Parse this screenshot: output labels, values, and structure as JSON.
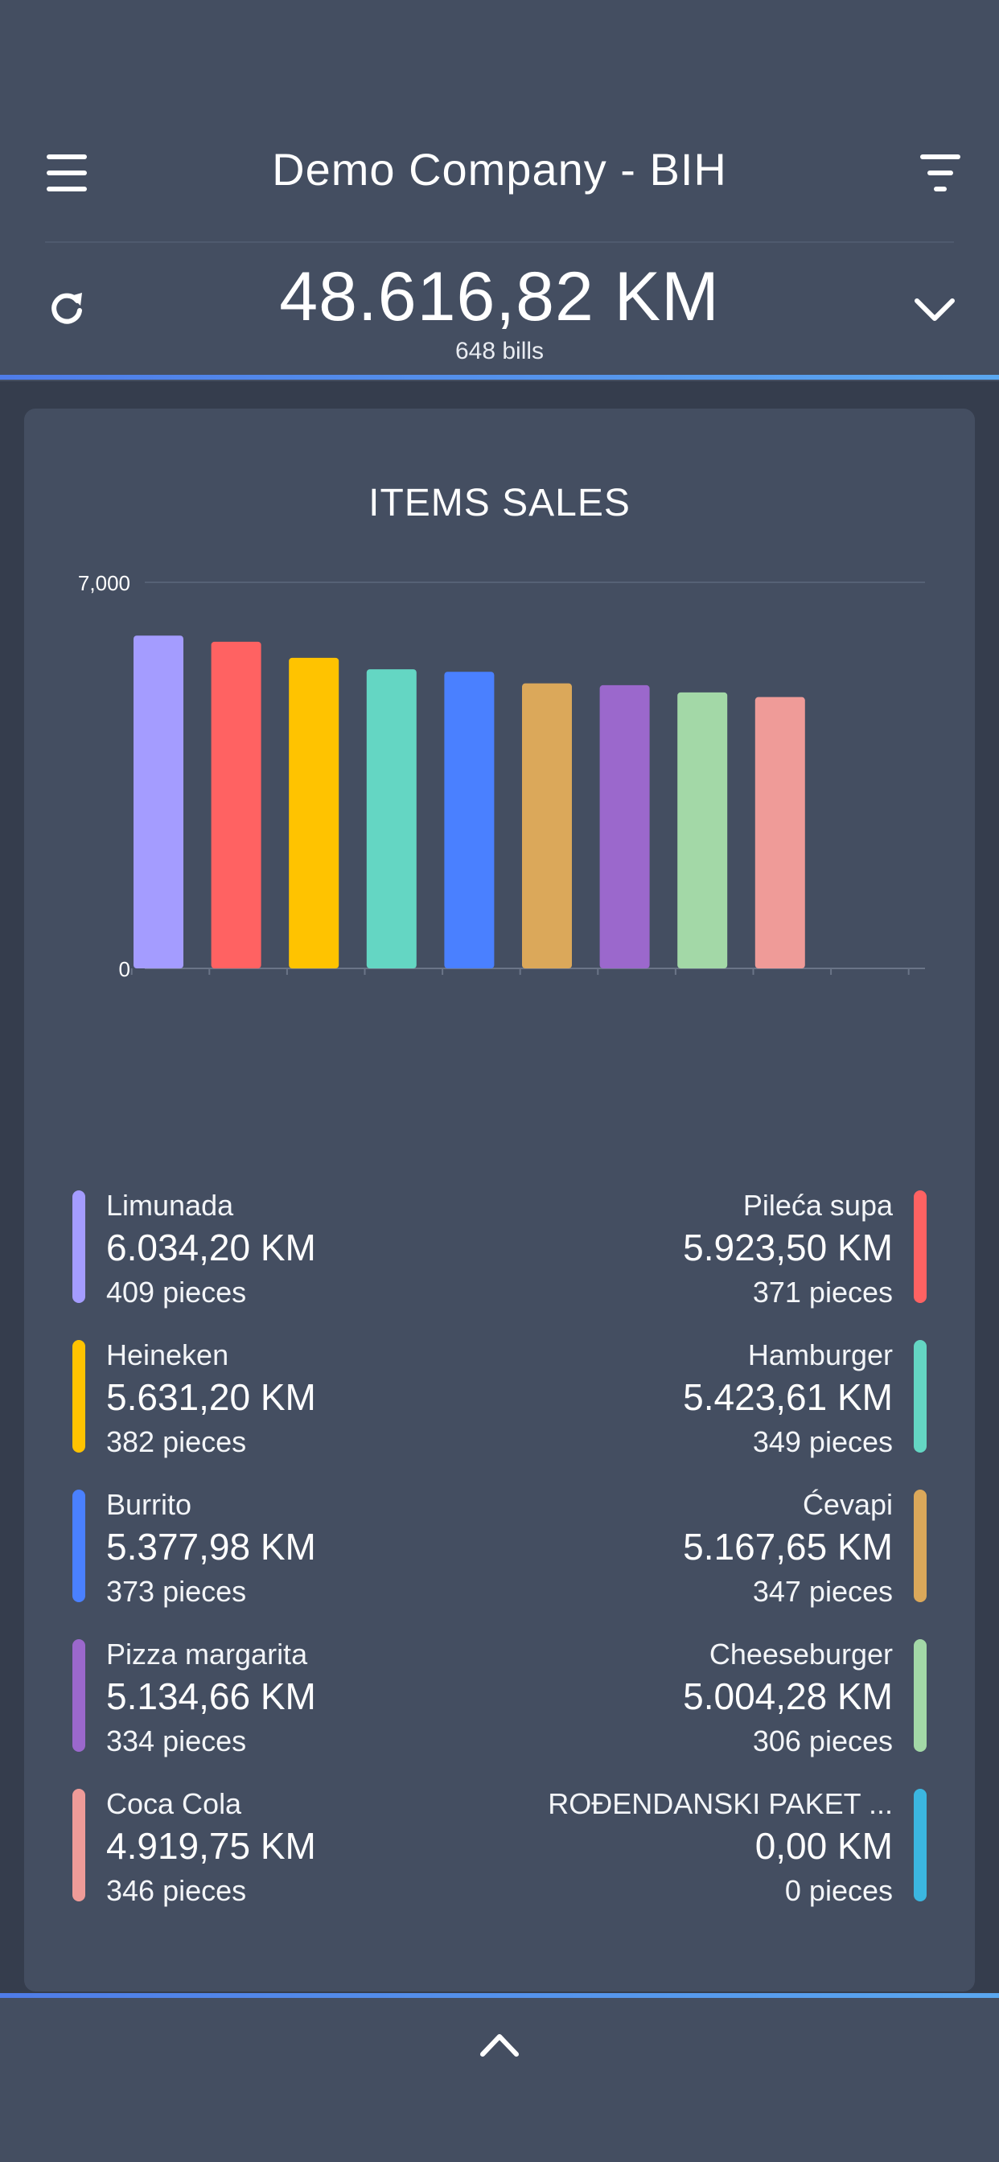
{
  "header": {
    "company_title": "Demo Company - BIH",
    "total_amount": "48.616,82 KM",
    "bills_count": "648 bills"
  },
  "icons": {
    "menu": "hamburger-menu-icon",
    "filter": "filter-icon",
    "refresh": "refresh-icon",
    "expand": "chevron-down-icon",
    "collapse": "chevron-up-icon"
  },
  "card": {
    "title": "ITEMS SALES"
  },
  "colors": {
    "accent": "#4f7ce8",
    "background": "#444e61",
    "content_background": "#353d4d"
  },
  "chart_data": {
    "type": "bar",
    "title": "",
    "ylim": [
      0,
      7000
    ],
    "y_tick_labels": [
      "0",
      "7,000"
    ],
    "grid": true,
    "categories": [
      "Limunada",
      "Pileća supa",
      "Heineken",
      "Hamburger",
      "Burrito",
      "Ćevapi",
      "Pizza margarita",
      "Cheeseburger",
      "Coca Cola",
      "ROĐENDANSKI PAKET ..."
    ],
    "values": [
      6034.2,
      5923.5,
      5631.2,
      5423.61,
      5377.98,
      5167.65,
      5134.66,
      5004.28,
      4919.75,
      0.0
    ],
    "colors": [
      "#a49cff",
      "#ff6262",
      "#ffc300",
      "#64d6c3",
      "#4a80ff",
      "#dba85a",
      "#9b68cc",
      "#a3d8a7",
      "#ef9b98",
      "#3bb6e0"
    ]
  },
  "legend": [
    {
      "name": "Limunada",
      "amount": "6.034,20 KM",
      "pieces": "409 pieces",
      "color": "#a49cff"
    },
    {
      "name": "Pileća supa",
      "amount": "5.923,50 KM",
      "pieces": "371 pieces",
      "color": "#ff6262"
    },
    {
      "name": "Heineken",
      "amount": "5.631,20 KM",
      "pieces": "382 pieces",
      "color": "#ffc300"
    },
    {
      "name": "Hamburger",
      "amount": "5.423,61 KM",
      "pieces": "349 pieces",
      "color": "#64d6c3"
    },
    {
      "name": "Burrito",
      "amount": "5.377,98 KM",
      "pieces": "373 pieces",
      "color": "#4a80ff"
    },
    {
      "name": "Ćevapi",
      "amount": "5.167,65 KM",
      "pieces": "347 pieces",
      "color": "#dba85a"
    },
    {
      "name": "Pizza margarita",
      "amount": "5.134,66 KM",
      "pieces": "334 pieces",
      "color": "#9b68cc"
    },
    {
      "name": "Cheeseburger",
      "amount": "5.004,28 KM",
      "pieces": "306 pieces",
      "color": "#a3d8a7"
    },
    {
      "name": "Coca Cola",
      "amount": "4.919,75 KM",
      "pieces": "346 pieces",
      "color": "#ef9b98"
    },
    {
      "name": "ROĐENDANSKI PAKET ...",
      "amount": "0,00 KM",
      "pieces": "0 pieces",
      "color": "#3bb6e0"
    }
  ]
}
